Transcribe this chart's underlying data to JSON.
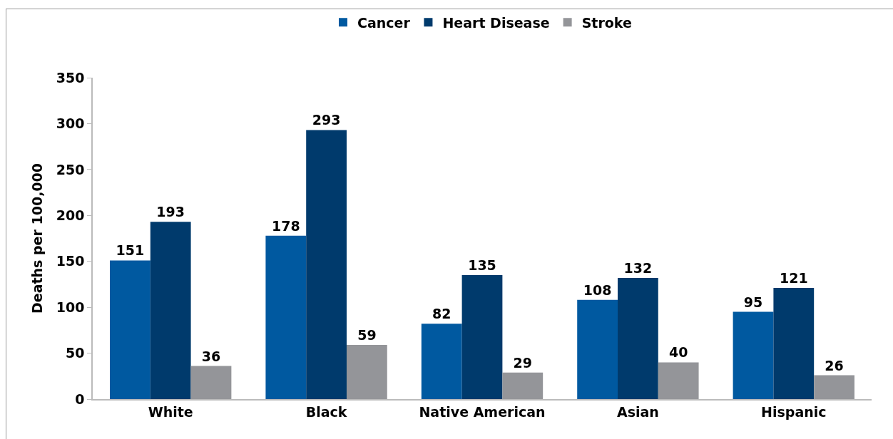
{
  "chart_data": {
    "type": "bar",
    "ylabel": "Deaths per 100,000",
    "categories": [
      "White",
      "Black",
      "Native American",
      "Asian",
      "Hispanic"
    ],
    "series": [
      {
        "name": "Cancer",
        "color": "#0059a0",
        "values": [
          151,
          178,
          82,
          108,
          95
        ]
      },
      {
        "name": "Heart Disease",
        "color": "#003a6c",
        "values": [
          193,
          293,
          135,
          132,
          121
        ]
      },
      {
        "name": "Stroke",
        "color": "#949599",
        "values": [
          36,
          59,
          29,
          40,
          26
        ]
      }
    ],
    "ylim": [
      0,
      350
    ],
    "yticks": [
      0,
      50,
      100,
      150,
      200,
      250,
      300,
      350
    ],
    "grid": false,
    "legend": "top",
    "data_labels": true
  }
}
